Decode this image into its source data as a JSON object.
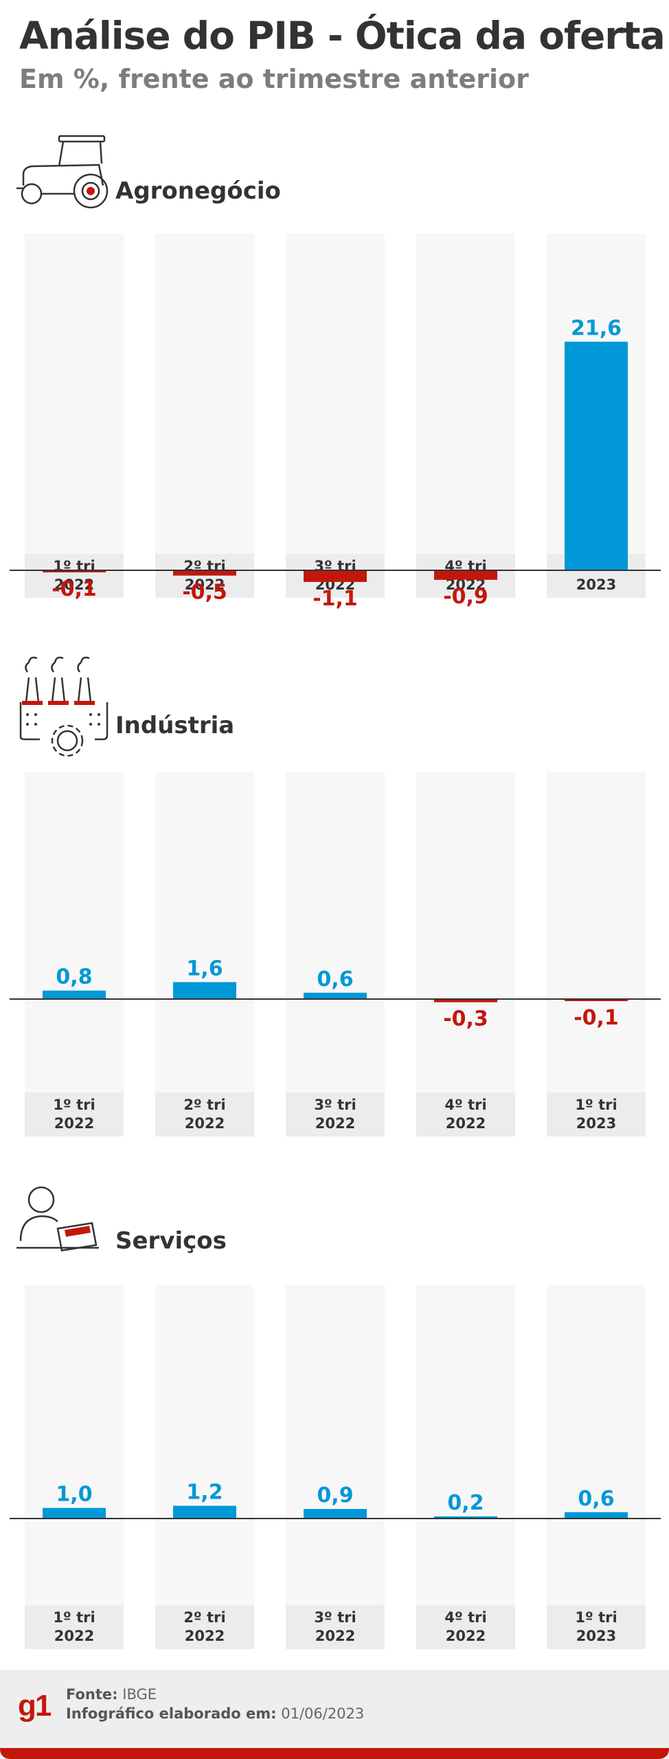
{
  "title": "Análise do PIB - Ótica da oferta",
  "subtitle": "Em %, frente ao trimestre anterior",
  "colors": {
    "positive": "#0098d6",
    "negative": "#c4170c",
    "column_bg": "#f7f7f8",
    "label_bg": "#ececed",
    "axis": "#333333"
  },
  "chart_data": [
    {
      "type": "bar",
      "title": "Agronegócio",
      "icon": "tractor-icon",
      "categories": [
        {
          "quarter": "1º tri",
          "year": "2022"
        },
        {
          "quarter": "2º tri",
          "year": "2022"
        },
        {
          "quarter": "3º tri",
          "year": "2022"
        },
        {
          "quarter": "4º tri",
          "year": "2022"
        },
        {
          "quarter": "1º tri",
          "year": "2023"
        }
      ],
      "values": [
        -0.1,
        -0.5,
        -1.1,
        -0.9,
        21.6
      ],
      "labels": [
        "-0,1",
        "-0,5",
        "-1,1",
        "-0,9",
        "21,6"
      ]
    },
    {
      "type": "bar",
      "title": "Indústria",
      "icon": "factory-gear-icon",
      "categories": [
        {
          "quarter": "1º tri",
          "year": "2022"
        },
        {
          "quarter": "2º tri",
          "year": "2022"
        },
        {
          "quarter": "3º tri",
          "year": "2022"
        },
        {
          "quarter": "4º tri",
          "year": "2022"
        },
        {
          "quarter": "1º tri",
          "year": "2023"
        }
      ],
      "values": [
        0.8,
        1.6,
        0.6,
        -0.3,
        -0.1
      ],
      "labels": [
        "0,8",
        "1,6",
        "0,6",
        "-0,3",
        "-0,1"
      ]
    },
    {
      "type": "bar",
      "title": "Serviços",
      "icon": "person-laptop-icon",
      "categories": [
        {
          "quarter": "1º tri",
          "year": "2022"
        },
        {
          "quarter": "2º tri",
          "year": "2022"
        },
        {
          "quarter": "3º tri",
          "year": "2022"
        },
        {
          "quarter": "4º tri",
          "year": "2022"
        },
        {
          "quarter": "1º tri",
          "year": "2023"
        }
      ],
      "values": [
        1.0,
        1.2,
        0.9,
        0.2,
        0.6
      ],
      "labels": [
        "1,0",
        "1,2",
        "0,9",
        "0,2",
        "0,6"
      ]
    }
  ],
  "footer": {
    "logo": "g1",
    "source_label": "Fonte:",
    "source_value": "IBGE",
    "made_label": "Infográfico elaborado em:",
    "made_value": "01/06/2023"
  }
}
